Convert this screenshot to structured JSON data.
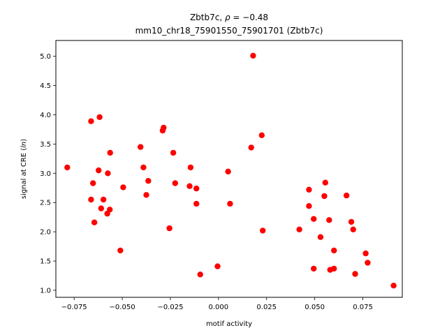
{
  "chart_data": {
    "type": "scatter",
    "title_line1_prefix": "Zbtb7c, ",
    "title_line1_rho": "ρ",
    "title_line1_suffix": " = −0.48",
    "title_line2": "mm10_chr18_75901550_75901701 (Zbtb7c)",
    "xlabel": "motif activity",
    "ylabel_prefix": "signal at CRE (",
    "ylabel_italic": "ln",
    "ylabel_suffix": ")",
    "xlim": [
      -0.0845,
      0.0955
    ],
    "ylim": [
      0.88,
      5.27
    ],
    "x_ticks": [
      -0.075,
      -0.05,
      -0.025,
      0.0,
      0.025,
      0.05,
      0.075
    ],
    "x_tick_labels": [
      "−0.075",
      "−0.050",
      "−0.025",
      "0.000",
      "0.025",
      "0.050",
      "0.075"
    ],
    "y_ticks": [
      1.0,
      1.5,
      2.0,
      2.5,
      3.0,
      3.5,
      4.0,
      4.5,
      5.0
    ],
    "y_tick_labels": [
      "1.0",
      "1.5",
      "2.0",
      "2.5",
      "3.0",
      "3.5",
      "4.0",
      "4.5",
      "5.0"
    ],
    "marker_color": "#ff0000",
    "grid": false,
    "points": [
      {
        "x": -0.0786,
        "y": 3.1
      },
      {
        "x": -0.0662,
        "y": 3.89
      },
      {
        "x": -0.0618,
        "y": 3.96
      },
      {
        "x": -0.0662,
        "y": 2.55
      },
      {
        "x": -0.0652,
        "y": 2.83
      },
      {
        "x": -0.0645,
        "y": 2.16
      },
      {
        "x": -0.0623,
        "y": 3.05
      },
      {
        "x": -0.061,
        "y": 2.4
      },
      {
        "x": -0.0598,
        "y": 2.55
      },
      {
        "x": -0.0575,
        "y": 3.0
      },
      {
        "x": -0.0578,
        "y": 2.31
      },
      {
        "x": -0.0563,
        "y": 3.35
      },
      {
        "x": -0.0565,
        "y": 2.38
      },
      {
        "x": -0.051,
        "y": 1.68
      },
      {
        "x": -0.0495,
        "y": 2.76
      },
      {
        "x": -0.0405,
        "y": 3.45
      },
      {
        "x": -0.039,
        "y": 3.1
      },
      {
        "x": -0.0375,
        "y": 2.63
      },
      {
        "x": -0.0365,
        "y": 2.87
      },
      {
        "x": -0.029,
        "y": 3.73
      },
      {
        "x": -0.0285,
        "y": 3.78
      },
      {
        "x": -0.0255,
        "y": 2.06
      },
      {
        "x": -0.0235,
        "y": 3.35
      },
      {
        "x": -0.0225,
        "y": 2.83
      },
      {
        "x": -0.015,
        "y": 2.78
      },
      {
        "x": -0.0145,
        "y": 3.1
      },
      {
        "x": -0.0115,
        "y": 2.74
      },
      {
        "x": -0.0115,
        "y": 2.48
      },
      {
        "x": -0.0095,
        "y": 1.27
      },
      {
        "x": -0.0005,
        "y": 1.41
      },
      {
        "x": 0.005,
        "y": 3.03
      },
      {
        "x": 0.006,
        "y": 2.48
      },
      {
        "x": 0.017,
        "y": 3.44
      },
      {
        "x": 0.018,
        "y": 5.01
      },
      {
        "x": 0.0225,
        "y": 3.65
      },
      {
        "x": 0.023,
        "y": 2.02
      },
      {
        "x": 0.042,
        "y": 2.04
      },
      {
        "x": 0.047,
        "y": 2.72
      },
      {
        "x": 0.047,
        "y": 2.44
      },
      {
        "x": 0.0495,
        "y": 2.22
      },
      {
        "x": 0.0495,
        "y": 1.37
      },
      {
        "x": 0.053,
        "y": 1.91
      },
      {
        "x": 0.055,
        "y": 2.61
      },
      {
        "x": 0.0555,
        "y": 2.84
      },
      {
        "x": 0.0575,
        "y": 2.2
      },
      {
        "x": 0.058,
        "y": 1.35
      },
      {
        "x": 0.06,
        "y": 1.37
      },
      {
        "x": 0.06,
        "y": 1.68
      },
      {
        "x": 0.0665,
        "y": 2.62
      },
      {
        "x": 0.069,
        "y": 2.17
      },
      {
        "x": 0.07,
        "y": 2.04
      },
      {
        "x": 0.071,
        "y": 1.28
      },
      {
        "x": 0.0765,
        "y": 1.63
      },
      {
        "x": 0.0775,
        "y": 1.47
      },
      {
        "x": 0.091,
        "y": 1.08
      }
    ]
  }
}
